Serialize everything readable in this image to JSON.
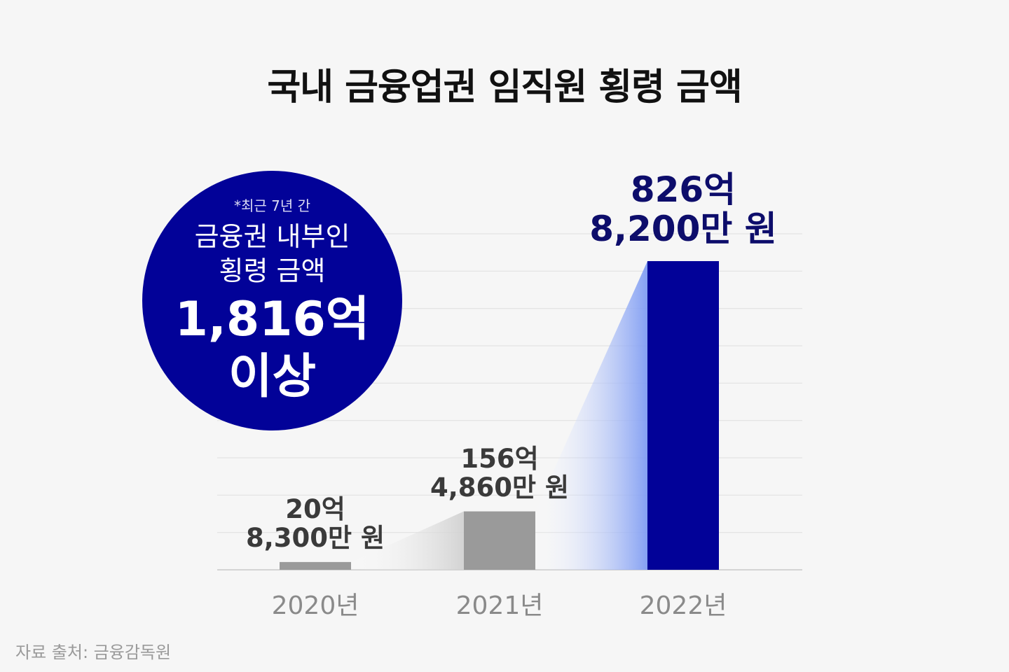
{
  "title": "국내 금융업권 임직원 횡령 금액",
  "callout": {
    "note": "*최근 7년 간",
    "line1": "금융권 내부인",
    "line2": "횡령 금액",
    "amount_line1": "1,816억",
    "amount_line2": "이상"
  },
  "source": "자료 출처: 금융감독원",
  "colors": {
    "background": "#f6f6f6",
    "bar_gray": "#9a9a9a",
    "bar_highlight": "#020298",
    "callout": "#020298",
    "gradient_light": "#7f9cf3"
  },
  "chart_data": {
    "type": "bar",
    "title": "국내 금융업권 임직원 횡령 금액",
    "categories": [
      "2020년",
      "2021년",
      "2022년"
    ],
    "values": [
      20.83,
      156.486,
      826.82
    ],
    "unit": "억 원",
    "data_labels": [
      {
        "line1": "20억",
        "line2": "8,300만 원"
      },
      {
        "line1": "156억",
        "line2": "4,860만 원"
      },
      {
        "line1": "826억",
        "line2": "8,200만 원"
      }
    ],
    "highlight_index": 2,
    "ylim": [
      0,
      900
    ],
    "grid": true,
    "xlabel": "",
    "ylabel": ""
  }
}
